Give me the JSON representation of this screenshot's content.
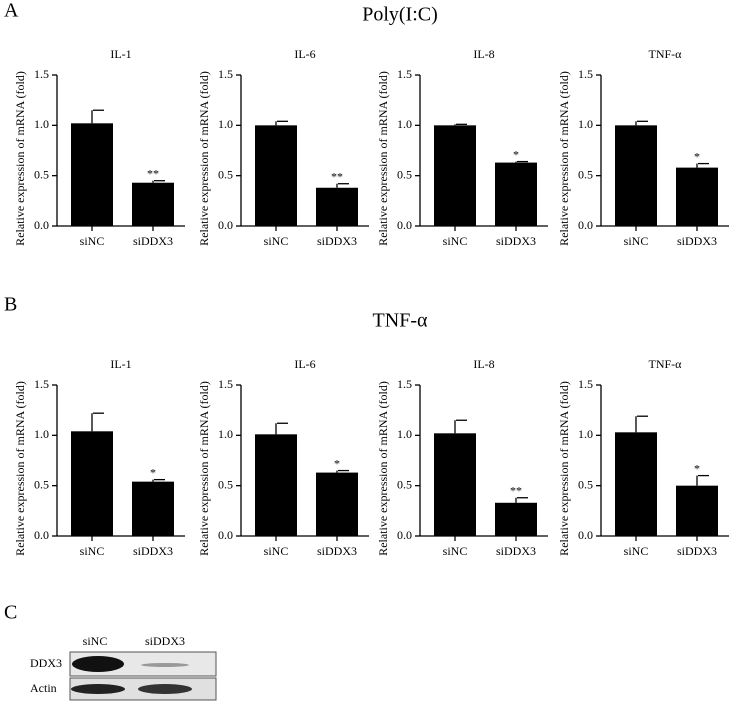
{
  "figure": {
    "panel_labels": [
      "A",
      "B",
      "C"
    ],
    "section_titles": [
      "Poly(I:C)",
      "TNF-α"
    ],
    "blot": {
      "lanes": [
        "siNC",
        "siDDX3"
      ],
      "rows": [
        "DDX3",
        "Actin"
      ]
    }
  },
  "chart_data": [
    {
      "type": "bar",
      "title": "IL-1",
      "ylabel": "Relative expression of mRNA (fold)",
      "categories": [
        "siNC",
        "siDDX3"
      ],
      "values": [
        1.02,
        0.43
      ],
      "errors": [
        0.13,
        0.02
      ],
      "significance": [
        null,
        "**"
      ],
      "color": "#000000",
      "ylim": [
        0,
        1.5
      ],
      "yticks": [
        {
          "value": 0,
          "label": "0.0"
        },
        0.5,
        {
          "value": 1,
          "label": "1.0"
        },
        1.5
      ]
    },
    {
      "type": "bar",
      "title": "IL-6",
      "ylabel": "Relative expression of mRNA (fold)",
      "categories": [
        "siNC",
        "siDDX3"
      ],
      "values": [
        1.0,
        0.38
      ],
      "errors": [
        0.04,
        0.04
      ],
      "significance": [
        null,
        "**"
      ],
      "color": "#000000",
      "ylim": [
        0,
        1.5
      ],
      "yticks": [
        {
          "value": 0,
          "label": "0.0"
        },
        0.5,
        {
          "value": 1,
          "label": "1.0"
        },
        1.5
      ]
    },
    {
      "type": "bar",
      "title": "IL-8",
      "ylabel": "Relative expression of mRNA (fold)",
      "categories": [
        "siNC",
        "siDDX3"
      ],
      "values": [
        1.0,
        0.63
      ],
      "errors": [
        0.01,
        0.01
      ],
      "significance": [
        null,
        "*"
      ],
      "color": "#000000",
      "ylim": [
        0,
        1.5
      ],
      "yticks": [
        {
          "value": 0,
          "label": "0.0"
        },
        0.5,
        {
          "value": 1,
          "label": "1.0"
        },
        1.5
      ]
    },
    {
      "type": "bar",
      "title": "TNF-α",
      "ylabel": "Relative expression of mRNA (fold)",
      "categories": [
        "siNC",
        "siDDX3"
      ],
      "values": [
        1.0,
        0.58
      ],
      "errors": [
        0.04,
        0.04
      ],
      "significance": [
        null,
        "*"
      ],
      "color": "#000000",
      "ylim": [
        0,
        1.5
      ],
      "yticks": [
        {
          "value": 0,
          "label": "0.0"
        },
        0.5,
        {
          "value": 1,
          "label": "1.0"
        },
        1.5
      ]
    },
    {
      "type": "bar",
      "title": "IL-1",
      "ylabel": "Relative expression of mRNA (fold)",
      "categories": [
        "siNC",
        "siDDX3"
      ],
      "values": [
        1.04,
        0.54
      ],
      "errors": [
        0.18,
        0.02
      ],
      "significance": [
        null,
        "*"
      ],
      "color": "#000000",
      "ylim": [
        0,
        1.5
      ],
      "yticks": [
        {
          "value": 0,
          "label": "0.0"
        },
        0.5,
        {
          "value": 1,
          "label": "1.0"
        },
        1.5
      ]
    },
    {
      "type": "bar",
      "title": "IL-6",
      "ylabel": "Relative expression of mRNA (fold)",
      "categories": [
        "siNC",
        "siDDX3"
      ],
      "values": [
        1.01,
        0.63
      ],
      "errors": [
        0.11,
        0.02
      ],
      "significance": [
        null,
        "*"
      ],
      "color": "#000000",
      "ylim": [
        0,
        1.5
      ],
      "yticks": [
        {
          "value": 0,
          "label": "0.0"
        },
        0.5,
        {
          "value": 1,
          "label": "1.0"
        },
        1.5
      ]
    },
    {
      "type": "bar",
      "title": "IL-8",
      "ylabel": "Relative expression of mRNA (fold)",
      "categories": [
        "siNC",
        "siDDX3"
      ],
      "values": [
        1.02,
        0.33
      ],
      "errors": [
        0.13,
        0.05
      ],
      "significance": [
        null,
        "**"
      ],
      "color": "#000000",
      "ylim": [
        0,
        1.5
      ],
      "yticks": [
        {
          "value": 0,
          "label": "0.0"
        },
        0.5,
        {
          "value": 1,
          "label": "1.0"
        },
        1.5
      ]
    },
    {
      "type": "bar",
      "title": "TNF-α",
      "ylabel": "Relative expression of mRNA (fold)",
      "categories": [
        "siNC",
        "siDDX3"
      ],
      "values": [
        1.03,
        0.5
      ],
      "errors": [
        0.16,
        0.1
      ],
      "significance": [
        null,
        "*"
      ],
      "color": "#000000",
      "ylim": [
        0,
        1.5
      ],
      "yticks": [
        {
          "value": 0,
          "label": "0.0"
        },
        0.5,
        {
          "value": 1,
          "label": "1.0"
        },
        1.5
      ]
    }
  ]
}
